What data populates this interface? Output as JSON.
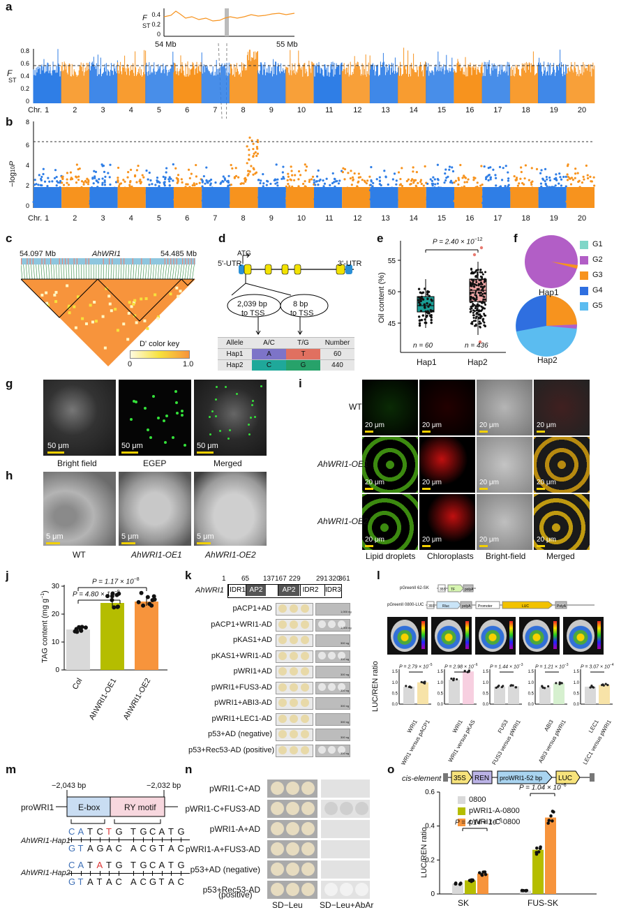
{
  "panels": {
    "a": "a",
    "b": "b",
    "c": "c",
    "d": "d",
    "e": "e",
    "f": "f",
    "g": "g",
    "h": "h",
    "i": "i",
    "j": "j",
    "k": "k",
    "l": "l",
    "m": "m",
    "n": "n",
    "o": "o"
  },
  "panel_a": {
    "inset_ylabel": "F",
    "inset_ylabel_sub": "ST",
    "inset_yticks": [
      "0.4",
      "0.2",
      "0"
    ],
    "inset_left": "54 Mb",
    "inset_right": "55 Mb",
    "ylabel": "F",
    "ylabel_sub": "ST",
    "yticks": [
      "0.8",
      "0.6",
      "0.4",
      "0.2",
      "0"
    ],
    "chr_label": "Chr.",
    "chromosomes": [
      "1",
      "2",
      "3",
      "4",
      "5",
      "6",
      "7",
      "8",
      "9",
      "10",
      "11",
      "12",
      "13",
      "14",
      "15",
      "16",
      "17",
      "18",
      "19",
      "20"
    ],
    "colors": {
      "blue": "#2f7ee6",
      "orange": "#f7931e"
    }
  },
  "panel_b": {
    "ylabel": "−log",
    "ylabel_sub": "10",
    "ylabel_p": "P",
    "yticks": [
      "8",
      "6",
      "4",
      "2",
      "0"
    ],
    "chr_label": "Chr."
  },
  "panel_c": {
    "left": "54.097 Mb",
    "gene": "AhWRI1",
    "right": "54.485 Mb",
    "key_title": "D' color key",
    "key_min": "0",
    "key_max": "1.0"
  },
  "panel_d": {
    "atg": "ATG",
    "utr5": "5'-UTR",
    "utr3": "3'-UTR",
    "bubble1_a": "2,039 bp",
    "bubble1_b": "to TSS",
    "bubble2_a": "8 bp",
    "bubble2_b": "to TSS",
    "table": {
      "headers": [
        "Allele",
        "A/C",
        "T/G",
        "Number"
      ],
      "rows": [
        [
          "Hap1",
          "A",
          "T",
          "60"
        ],
        [
          "Hap2",
          "C",
          "G",
          "440"
        ]
      ]
    }
  },
  "panel_e": {
    "ylabel": "Oil content (%)",
    "yticks": [
      "55",
      "50",
      "45"
    ],
    "pval": "P = 2.40 × 10",
    "pval_exp": "−12",
    "n1": "n = 60",
    "n2": "n = 436",
    "x": [
      "Hap1",
      "Hap2"
    ]
  },
  "panel_f": {
    "legend": [
      "G1",
      "G2",
      "G3",
      "G4",
      "G5"
    ],
    "colors": [
      "#7fd6c8",
      "#b25ec6",
      "#f7931e",
      "#2f6fe0",
      "#5bbcf0"
    ],
    "labels": [
      "Hap1",
      "Hap2"
    ]
  },
  "panel_g": {
    "labels": [
      "Bright field",
      "EGEP",
      "Merged"
    ],
    "scale": "50 μm"
  },
  "panel_h": {
    "labels": [
      "WT",
      "AhWRI1-OE1",
      "AhWRI1-OE2"
    ],
    "scale": "5 μm"
  },
  "panel_i": {
    "rows": [
      "WT",
      "AhWRI1-OE1",
      "AhWRI1-OE2"
    ],
    "cols": [
      "Lipid droplets",
      "Chloroplasts",
      "Bright-field",
      "Merged"
    ],
    "scale": "20 μm"
  },
  "panel_j": {
    "ylabel": "TAG content (mg g",
    "ylabel_sup": "−1",
    "ylabel_end": ")",
    "yticks": [
      "30",
      "20",
      "10",
      "0"
    ],
    "p1": "P = 4.80 × 10",
    "p1_exp": "−9",
    "p2": "P = 1.17 × 10",
    "p2_exp": "−8",
    "x": [
      "Col",
      "AhWRI1-OE1",
      "AhWRI1-OE2"
    ]
  },
  "panel_k": {
    "gene": "AhWRI1",
    "positions": [
      "1",
      "65",
      "137",
      "167",
      "229",
      "291",
      "320",
      "361"
    ],
    "domains": [
      "IDR1",
      "AP2",
      "AP2",
      "IDR2",
      "IDR3"
    ],
    "rows": [
      "pACP1+AD",
      "pACP1+WRI1-AD",
      "pKAS1+AD",
      "pKAS1+WRI1-AD",
      "pWRI1+AD",
      "pWRI1+FUS3-AD",
      "pWRI1+ABI3-AD",
      "pWRI1+LEC1-AD",
      "p53+AD (negative)",
      "p53+Rec53-AD (positive)"
    ],
    "conc": [
      "1,000 ng",
      "1,000 ng",
      "300 ng",
      "300 ng",
      "300 ng",
      "300 ng",
      "300 ng",
      "300 ng",
      "300 ng",
      "300 ng"
    ]
  },
  "panel_l": {
    "construct1": "pGreenII 62-SK",
    "construct2": "pGreenII 0800-LUC",
    "c1_parts": [
      "35S",
      "TF",
      "polyA"
    ],
    "c2_parts": [
      "35S",
      "Rluc",
      "polyA",
      "Promoter",
      "LUC",
      "PolyA"
    ],
    "ylabel": "LUC/REN ratio",
    "pvals": [
      {
        "t": "P = 2.79 × 10",
        "e": "−5"
      },
      {
        "t": "P = 2.98 × 10",
        "e": "−6"
      },
      {
        "t": "P = 1.44 × 10",
        "e": "−3"
      },
      {
        "t": "P = 1.21 × 10",
        "e": "−3"
      },
      {
        "t": "P = 3.07 × 10",
        "e": "−4"
      }
    ],
    "x": [
      [
        "WRI1",
        "WRI1 versus pACP1"
      ],
      [
        "WRI1",
        "WRI1 versus pKAS"
      ],
      [
        "FUS3",
        "FUS3 versus pWRI1"
      ],
      [
        "ABI3",
        "ABI3 versus pWRI1"
      ],
      [
        "LEC1",
        "LEC1 versus pWRI1"
      ]
    ],
    "values": [
      [
        0.8,
        1.0
      ],
      [
        1.12,
        1.5
      ],
      [
        0.8,
        0.82
      ],
      [
        0.78,
        0.95
      ],
      [
        0.8,
        0.88
      ]
    ]
  },
  "panel_m": {
    "pos_left": "−2,043 bp",
    "pos_right": "−2,032 bp",
    "promoter": "proWRI1",
    "box1": "E-box",
    "box2": "RY motif",
    "hap1": "AhWRI1-Hap1",
    "hap2": "AhWRI1-Hap2",
    "hap1_top": [
      "C",
      "A",
      "T",
      "C",
      "T",
      "G",
      "T",
      "G",
      "C",
      "A",
      "T",
      "G"
    ],
    "hap1_bot": [
      "G",
      "T",
      "A",
      "G",
      "A",
      "C",
      "A",
      "C",
      "G",
      "T",
      "A",
      "C"
    ],
    "hap2_top": [
      "C",
      "A",
      "T",
      "A",
      "T",
      "G",
      "T",
      "G",
      "C",
      "A",
      "T",
      "G"
    ],
    "hap2_bot": [
      "G",
      "T",
      "A",
      "T",
      "A",
      "C",
      "A",
      "C",
      "G",
      "T",
      "A",
      "C"
    ]
  },
  "panel_n": {
    "rows": [
      "pWRI1-C+AD",
      "pWRI1-C+FUS3-AD",
      "pWRI1-A+AD",
      "pWRI1-A+FUS3-AD",
      "p53+AD (negative)",
      "p53+Rec53-AD"
    ],
    "row6b": "(positive)",
    "cols": [
      "SD−Leu",
      "SD−Leu+AbAr"
    ]
  },
  "panel_o": {
    "cis": "cis-element",
    "parts": [
      "35S",
      "REN",
      "proWRI1-52 bp",
      "LUC"
    ],
    "ylabel": "LUC/REN ratio",
    "yticks": [
      "0.6",
      "0.4",
      "0.2",
      "0"
    ],
    "legend": [
      "0800",
      "pWRI1-A-0800",
      "pWRI1-C-0800"
    ],
    "colors": [
      "#d9d9d9",
      "#b5bd00",
      "#f7943c"
    ],
    "p1": "P = 4.14 × 10",
    "p1_exp": "−5",
    "p2": "P = 1.04 × 10",
    "p2_exp": "−6",
    "x": [
      "SK",
      "FUS-SK"
    ]
  },
  "chart_data": [
    {
      "type": "bar",
      "ylabel": "TAG content (mg g−1)",
      "categories": [
        "Col",
        "AhWRI1-OE1",
        "AhWRI1-OE2"
      ],
      "values": [
        14.5,
        24,
        24.5
      ],
      "ylim": [
        0,
        30
      ],
      "colors": [
        "#d9d9d9",
        "#b5bd00",
        "#f7943c"
      ]
    },
    {
      "type": "bar",
      "ylabel": "LUC/REN ratio",
      "categories": [
        "SK",
        "FUS-SK"
      ],
      "series": [
        {
          "name": "0800",
          "values": [
            0.06,
            0.02
          ]
        },
        {
          "name": "pWRI1-A-0800",
          "values": [
            0.08,
            0.26
          ]
        },
        {
          "name": "pWRI1-C-0800",
          "values": [
            0.12,
            0.45
          ]
        }
      ],
      "ylim": [
        0,
        0.6
      ]
    }
  ]
}
